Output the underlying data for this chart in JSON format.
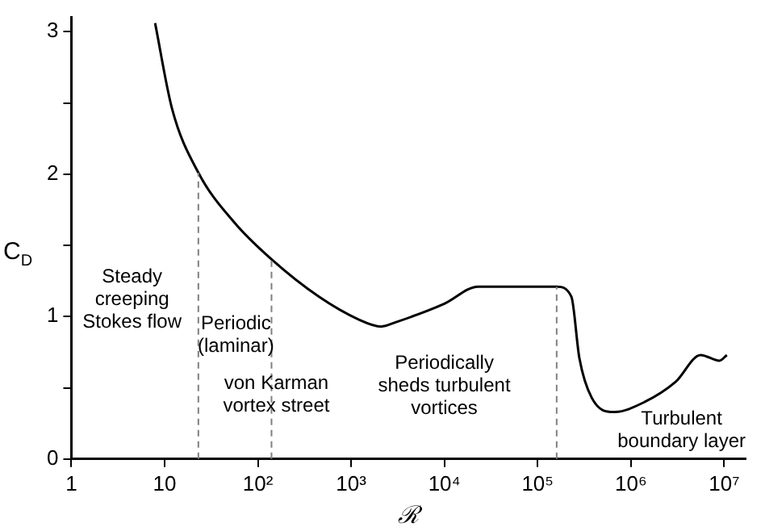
{
  "chart_data": {
    "type": "line",
    "xlabel": "ℛ",
    "ylabel": "C$_{D}$",
    "log": "x",
    "grid": false,
    "legend": false,
    "marker": "none",
    "line_style": "solid",
    "xlim": [
      1,
      17000000
    ],
    "ylim": [
      0,
      3.1
    ],
    "xticks": [
      1,
      10,
      {
        "value": 100,
        "label": "10²"
      },
      {
        "value": 1000,
        "label": "10³"
      },
      {
        "value": 10000,
        "label": "10⁴"
      },
      {
        "value": 100000,
        "label": "10⁵"
      },
      {
        "value": 1000000,
        "label": "10⁶"
      },
      {
        "value": 10000000,
        "label": "10⁷"
      }
    ],
    "yticks": [
      0,
      {
        "value": 0.5,
        "label": null
      },
      1,
      {
        "value": 1.5,
        "label": null
      },
      2,
      {
        "value": 2.5,
        "label": null
      },
      3
    ],
    "series": [
      {
        "color": "#000000",
        "x": [
          7.9,
          12,
          23,
          56,
          141,
          450,
          1200,
          2100,
          3000,
          10000,
          23000,
          160000,
          230000,
          280000,
          380000,
          660000,
          1400000,
          3000000,
          5600000,
          8900000,
          10700000
        ],
        "values": [
          3.06,
          2.46,
          2.01,
          1.66,
          1.4,
          1.14,
          0.98,
          0.93,
          0.96,
          1.09,
          1.21,
          1.21,
          1.14,
          0.71,
          0.43,
          0.33,
          0.4,
          0.54,
          0.73,
          0.69,
          0.73
        ]
      }
    ],
    "ref_lines": [
      {
        "axis": "x",
        "value": 23,
        "color": "#808080",
        "line_style": "dashed"
      },
      {
        "axis": "x",
        "value": 140,
        "color": "#808080",
        "line_style": "dashed"
      },
      {
        "axis": "x",
        "value": 160000,
        "color": "#808080",
        "line_style": "dashed"
      }
    ],
    "annotations": [
      "Steady\ncreeping\nStokes flow",
      "Periodic\n(laminar)",
      "von Karman\nvortex street",
      "Periodically\nsheds turbulent\nvortices",
      "Turbulent\nboundary layer"
    ]
  }
}
